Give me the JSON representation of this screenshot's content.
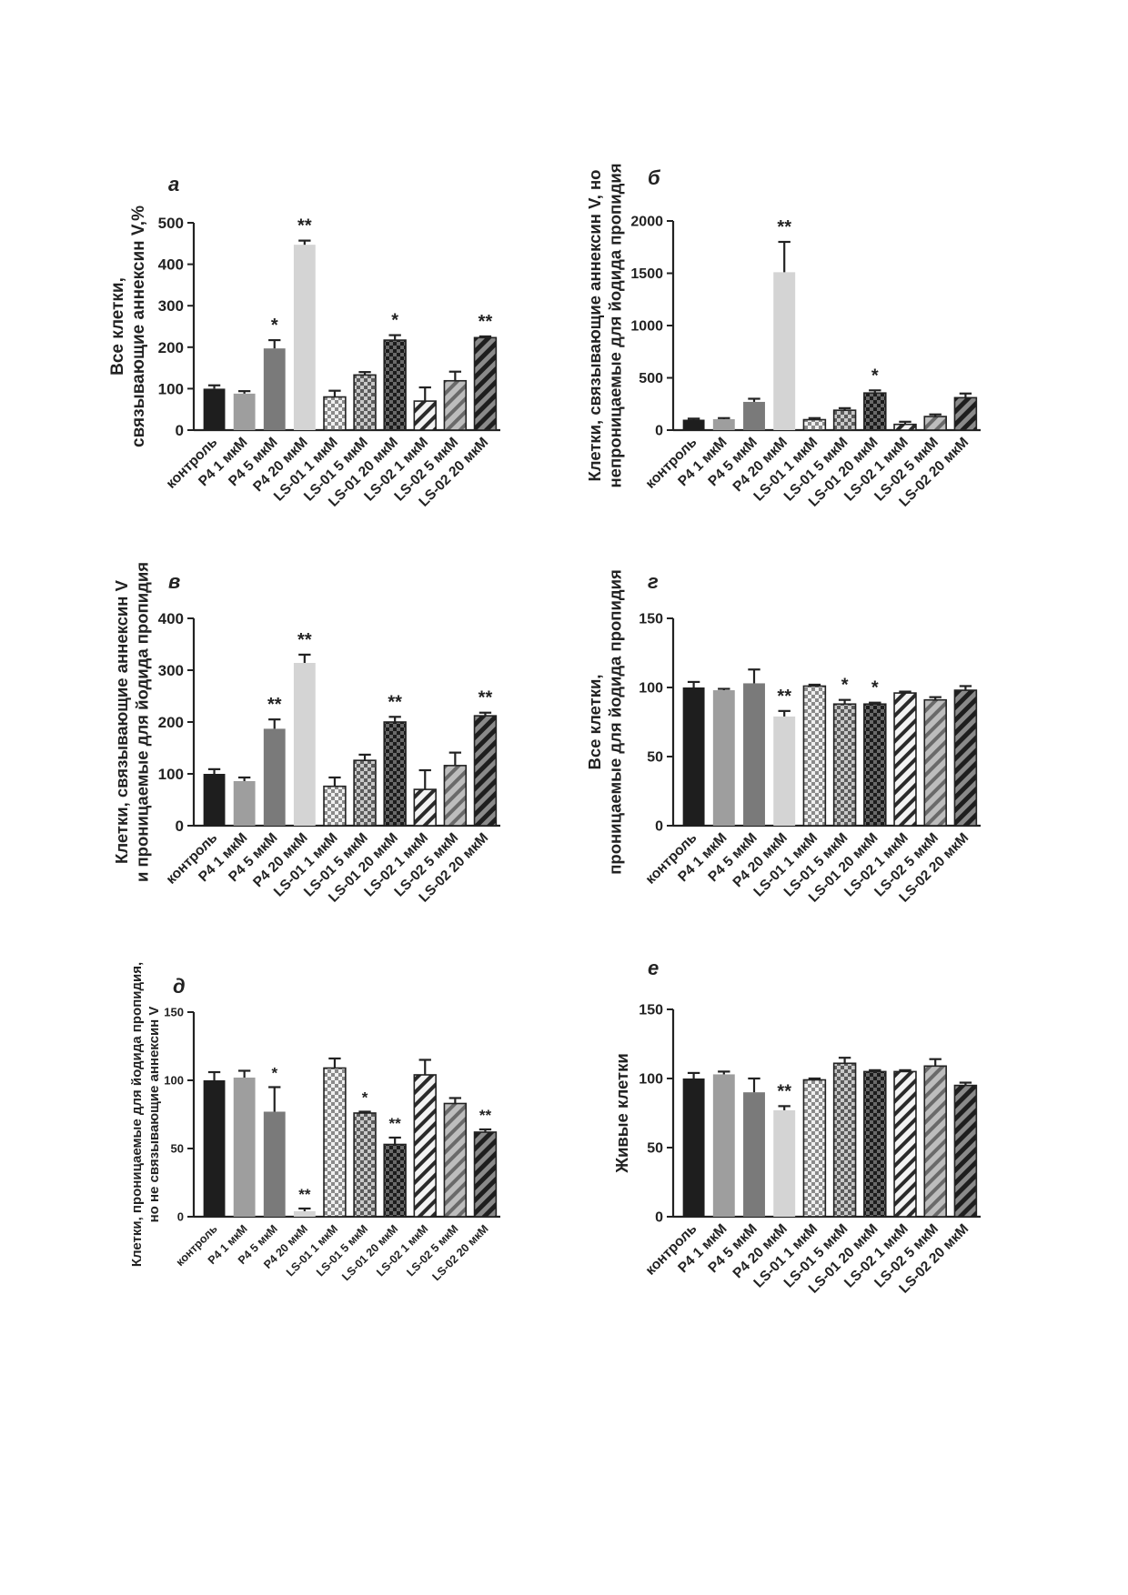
{
  "colors": {
    "axis": "#222222",
    "bars": [
      "#1e1e1e",
      "#9e9e9e",
      "#7a7a7a",
      "#d4d4d4",
      "#c8c8c8",
      "#9a9a9a",
      "#3a3a3a",
      "#e6e6e6",
      "#a6a6a6",
      "#555555"
    ],
    "patterns": [
      "solid",
      "solid",
      "solid",
      "solid",
      "check-fine",
      "check-med",
      "check-dark",
      "stripe-light",
      "stripe-med",
      "stripe-dark"
    ]
  },
  "chart_data": [
    {
      "id": "a",
      "type": "bar",
      "panel_letter": "а",
      "ylabel_lines": [
        "Все клетки,",
        "связывающие аннексин V,%"
      ],
      "categories": [
        "контроль",
        "P4 1 мкМ",
        "P4 5 мкМ",
        "P4 20 мкМ",
        "LS-01 1 мкМ",
        "LS-01 5 мкМ",
        "LS-01 20 мкМ",
        "LS-02 1 мкМ",
        "LS-02 5 мкМ",
        "LS-02 20 мкМ"
      ],
      "values": [
        100,
        88,
        197,
        447,
        80,
        133,
        217,
        70,
        119,
        223
      ],
      "errors": [
        8,
        6,
        20,
        10,
        15,
        7,
        12,
        33,
        22,
        3
      ],
      "significance": [
        "",
        "",
        "*",
        "**",
        "",
        "",
        "*",
        "",
        "",
        "**"
      ],
      "ylim": [
        0,
        500
      ],
      "yticks": [
        0,
        100,
        200,
        300,
        400,
        500
      ]
    },
    {
      "id": "b",
      "type": "bar",
      "panel_letter": "б",
      "ylabel_lines": [
        "Клетки, связывающие аннексин V, но",
        "непроницаемые для йодида пропидия"
      ],
      "categories": [
        "контроль",
        "P4 1 мкМ",
        "P4 5 мкМ",
        "P4 20 мкМ",
        "LS-01 1 мкМ",
        "LS-01 5 мкМ",
        "LS-01 20 мкМ",
        "LS-02 1 мкМ",
        "LS-02 5 мкМ",
        "LS-02 20 мкМ"
      ],
      "values": [
        100,
        105,
        270,
        1510,
        100,
        190,
        355,
        55,
        130,
        310
      ],
      "errors": [
        10,
        10,
        30,
        290,
        15,
        20,
        25,
        25,
        20,
        40
      ],
      "significance": [
        "",
        "",
        "",
        "**",
        "",
        "",
        "*",
        "",
        "",
        ""
      ],
      "ylim": [
        0,
        2000
      ],
      "yticks": [
        0,
        500,
        1000,
        1500,
        2000
      ]
    },
    {
      "id": "c",
      "type": "bar",
      "panel_letter": "в",
      "ylabel_lines": [
        "Клетки, связывающие аннексин V",
        "и проницаемые для йодида пропидия"
      ],
      "categories": [
        "контроль",
        "P4 1 мкМ",
        "P4 5 мкМ",
        "P4 20 мкМ",
        "LS-01 1 мкМ",
        "LS-01 5 мкМ",
        "LS-01 20 мкМ",
        "LS-02 1 мкМ",
        "LS-02 5 мкМ",
        "LS-02 20 мкМ"
      ],
      "values": [
        100,
        86,
        187,
        314,
        76,
        126,
        200,
        70,
        116,
        212
      ],
      "errors": [
        9,
        7,
        18,
        16,
        17,
        11,
        10,
        37,
        25,
        6
      ],
      "significance": [
        "",
        "",
        "**",
        "**",
        "",
        "",
        "**",
        "",
        "",
        "**"
      ],
      "ylim": [
        0,
        400
      ],
      "yticks": [
        0,
        100,
        200,
        300,
        400
      ]
    },
    {
      "id": "d",
      "type": "bar",
      "panel_letter": "г",
      "ylabel_lines": [
        "Все клетки,",
        "проницаемые для йодида пропидия"
      ],
      "categories": [
        "контроль",
        "P4 1 мкМ",
        "P4 5 мкМ",
        "P4 20 мкМ",
        "LS-01 1 мкМ",
        "LS-01 5 мкМ",
        "LS-01 20 мкМ",
        "LS-02 1 мкМ",
        "LS-02 5 мкМ",
        "LS-02 20 мкМ"
      ],
      "values": [
        100,
        98,
        103,
        79,
        101,
        88,
        88,
        96,
        91,
        98
      ],
      "errors": [
        4,
        1,
        10,
        4,
        1,
        3,
        1,
        1,
        2,
        3
      ],
      "significance": [
        "",
        "",
        "",
        "**",
        "",
        "*",
        "*",
        "",
        "",
        ""
      ],
      "ylim": [
        0,
        150
      ],
      "yticks": [
        0,
        50,
        100,
        150
      ]
    },
    {
      "id": "e",
      "type": "bar",
      "panel_letter": "д",
      "ylabel_lines": [
        "Клетки, проницаемые для йодида пропидия,",
        "но не связывающие аннексин V"
      ],
      "categories": [
        "контроль",
        "P4 1 мкМ",
        "P4 5 мкМ",
        "P4 20 мкМ",
        "LS-01 1 мкМ",
        "LS-01 5 мкМ",
        "LS-01 20 мкМ",
        "LS-02 1 мкМ",
        "LS-02 5 мкМ",
        "LS-02 20 мкМ"
      ],
      "values": [
        100,
        102,
        77,
        4,
        109,
        76,
        53,
        104,
        83,
        62
      ],
      "errors": [
        6,
        5,
        18,
        2,
        7,
        1,
        5,
        11,
        4,
        2
      ],
      "significance": [
        "",
        "",
        "*",
        "**",
        "",
        "*",
        "**",
        "",
        "",
        "**"
      ],
      "ylim": [
        0,
        150
      ],
      "yticks": [
        0,
        50,
        100,
        150
      ]
    },
    {
      "id": "f",
      "type": "bar",
      "panel_letter": "е",
      "ylabel_lines": [
        "Живые клетки"
      ],
      "categories": [
        "контроль",
        "P4 1 мкМ",
        "P4 5 мкМ",
        "P4 20 мкМ",
        "LS-01 1 мкМ",
        "LS-01 5 мкМ",
        "LS-01 20 мкМ",
        "LS-02 1 мкМ",
        "LS-02 5 мкМ",
        "LS-02 20 мкМ"
      ],
      "values": [
        100,
        103,
        90,
        77,
        99,
        111,
        105,
        105,
        109,
        95
      ],
      "errors": [
        4,
        2,
        10,
        3,
        1,
        4,
        1,
        1,
        5,
        2
      ],
      "significance": [
        "",
        "",
        "",
        "**",
        "",
        "",
        "",
        "",
        "",
        ""
      ],
      "ylim": [
        0,
        150
      ],
      "yticks": [
        0,
        50,
        100,
        150
      ]
    }
  ]
}
